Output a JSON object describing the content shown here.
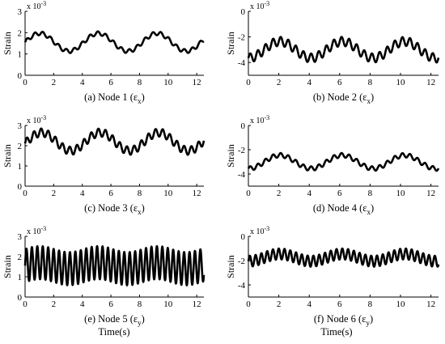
{
  "common": {
    "ylabel": "Strain",
    "multiplier_base": "x 10",
    "multiplier_exp": "-3",
    "xlabel": "Time(s)",
    "x_ticks": [
      "0",
      "2",
      "4",
      "6",
      "8",
      "10",
      "12"
    ],
    "xlim": [
      0,
      12.5
    ]
  },
  "chart_data": [
    {
      "type": "line",
      "caption_main": "(a) Node 1 (ε",
      "caption_sub": "x",
      "caption_end": ")",
      "ylabel": "Strain",
      "y_ticks": [
        "0",
        "1",
        "2",
        "3"
      ],
      "y_tick_values": [
        0,
        1,
        2,
        3
      ],
      "ylim": [
        0,
        3
      ],
      "model": {
        "base": 1.55,
        "slow_amp": 0.42,
        "slow_period": 4.1,
        "slow_phase": 0.0,
        "fast_amp": 0.09,
        "fast_period": 0.55
      }
    },
    {
      "type": "line",
      "caption_main": "(b) Node 2 (ε",
      "caption_sub": "x",
      "caption_end": ")",
      "ylabel": "Strain",
      "y_ticks": [
        "0",
        "-2",
        "-4"
      ],
      "y_tick_values": [
        0,
        -2,
        -4
      ],
      "ylim": [
        -5,
        0
      ],
      "model": {
        "base": -3.0,
        "slow_amp": 0.65,
        "slow_period": 4.1,
        "slow_phase": -1.6,
        "fast_amp": 0.35,
        "fast_period": 0.5
      }
    },
    {
      "type": "line",
      "caption_main": "(c) Node 3 (ε",
      "caption_sub": "x",
      "caption_end": ")",
      "ylabel": "Strain",
      "y_ticks": [
        "0",
        "1",
        "2",
        "3"
      ],
      "y_tick_values": [
        0,
        1,
        2,
        3
      ],
      "ylim": [
        0,
        3
      ],
      "model": {
        "base": 2.2,
        "slow_amp": 0.45,
        "slow_period": 4.1,
        "slow_phase": -0.2,
        "fast_amp": 0.2,
        "fast_period": 0.5
      }
    },
    {
      "type": "line",
      "caption_main": "(d) Node 4 (ε",
      "caption_sub": "x",
      "caption_end": ")",
      "ylabel": "Strain",
      "y_ticks": [
        "0",
        "-2",
        "-4"
      ],
      "y_tick_values": [
        0,
        -2,
        -4
      ],
      "ylim": [
        -5,
        0
      ],
      "model": {
        "base": -3.0,
        "slow_amp": 0.55,
        "slow_period": 4.1,
        "slow_phase": -1.6,
        "fast_amp": 0.18,
        "fast_period": 0.5
      }
    },
    {
      "type": "line",
      "caption_main": "(e)  Node 5 (ε",
      "caption_sub": "y",
      "caption_end": ")",
      "ylabel": "Strain",
      "y_ticks": [
        "0",
        "1",
        "2",
        "3"
      ],
      "y_tick_values": [
        0,
        1,
        2,
        3
      ],
      "ylim": [
        0,
        3
      ],
      "model": {
        "base": 1.55,
        "slow_amp": 0.15,
        "slow_period": 4.1,
        "slow_phase": 0.0,
        "fast_amp": 0.82,
        "fast_period": 0.38
      }
    },
    {
      "type": "line",
      "caption_main": "(f) Node 6 (ε",
      "caption_sub": "y",
      "caption_end": ")",
      "ylabel": "Strain",
      "y_ticks": [
        "0",
        "-2",
        "-4"
      ],
      "y_tick_values": [
        0,
        -2,
        -4
      ],
      "ylim": [
        -5,
        0
      ],
      "model": {
        "base": -1.75,
        "slow_amp": 0.3,
        "slow_period": 4.1,
        "slow_phase": -1.6,
        "fast_amp": 0.45,
        "fast_period": 0.38
      }
    }
  ]
}
